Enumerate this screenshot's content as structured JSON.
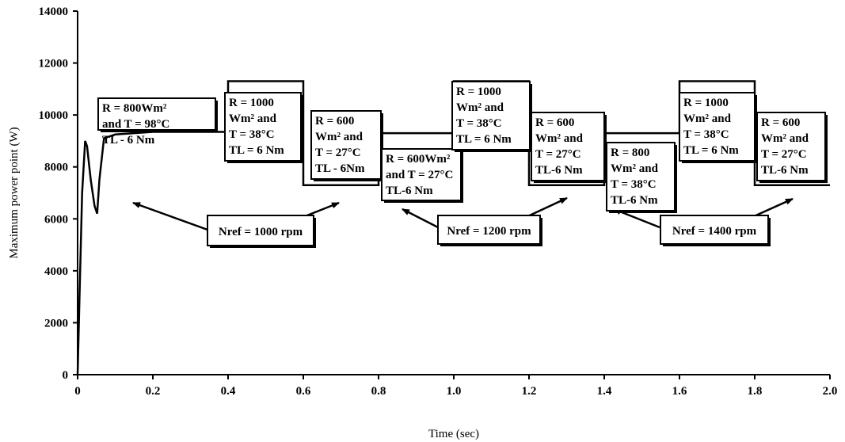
{
  "chart_data": {
    "type": "line",
    "xlabel": "Time (sec)",
    "ylabel": "Maximum power point (W)",
    "xlim": [
      0,
      2.0
    ],
    "ylim": [
      0,
      14000
    ],
    "x_ticks": [
      "0",
      "0.2",
      "0.4",
      "0.6",
      "0.8",
      "1.0",
      "1.2",
      "1.4",
      "1.6",
      "1.8",
      "2.0"
    ],
    "y_ticks": [
      "0",
      "2000",
      "4000",
      "6000",
      "8000",
      "10000",
      "12000",
      "14000"
    ],
    "grid": false,
    "series": [
      {
        "color": "#000000",
        "x": [
          0,
          0.005,
          0.012,
          0.02,
          0.025,
          0.035,
          0.045,
          0.052,
          0.058,
          0.07,
          0.1,
          0.2,
          0.4,
          0.4,
          0.6,
          0.6,
          0.8,
          0.8,
          1.0,
          1.0,
          1.2,
          1.2,
          1.4,
          1.4,
          1.6,
          1.6,
          1.8,
          1.8,
          2.0
        ],
        "y": [
          0,
          3000,
          7000,
          9000,
          8800,
          7500,
          6500,
          6200,
          7500,
          9100,
          9250,
          9350,
          9350,
          11300,
          11300,
          7300,
          7300,
          9300,
          9300,
          11300,
          11300,
          7300,
          7300,
          9300,
          9300,
          11300,
          11300,
          7300,
          7300
        ]
      }
    ],
    "annotations": [
      {
        "lines": [
          "R = 800Wm²",
          "and T = 98°C",
          "TL - 6 Nm"
        ]
      },
      {
        "lines": [
          "R = 1000",
          "Wm² and",
          "T = 38°C",
          "TL = 6 Nm"
        ]
      },
      {
        "lines": [
          "R = 600",
          "Wm² and",
          "T = 27°C",
          "TL - 6Nm"
        ]
      },
      {
        "lines": [
          "R = 600Wm²",
          "and T = 27°C",
          "TL-6 Nm"
        ]
      },
      {
        "lines": [
          "R = 1000",
          "Wm² and",
          "T = 38°C",
          "TL = 6 Nm"
        ]
      },
      {
        "lines": [
          "R = 600",
          "Wm² and",
          "T = 27°C",
          "TL-6 Nm"
        ]
      },
      {
        "lines": [
          "R = 800",
          "Wm² and",
          "T = 38°C",
          "TL-6 Nm"
        ]
      },
      {
        "lines": [
          "R = 1000",
          "Wm² and",
          "T = 38°C",
          "TL = 6 Nm"
        ]
      },
      {
        "lines": [
          "R = 600",
          "Wm² and",
          "T = 27°C",
          "TL-6 Nm"
        ]
      },
      {
        "lines": [
          "Nref = 1000 rpm"
        ]
      },
      {
        "lines": [
          "Nref = 1200 rpm"
        ]
      },
      {
        "lines": [
          "Nref = 1400 rpm"
        ]
      }
    ]
  }
}
